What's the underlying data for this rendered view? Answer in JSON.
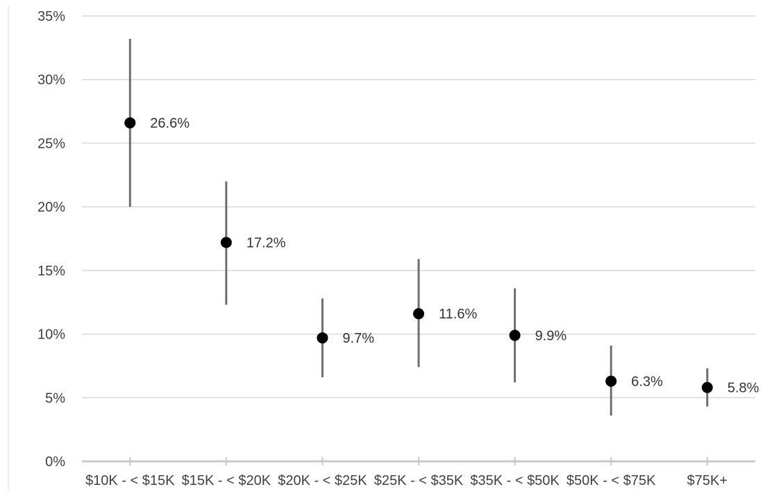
{
  "chart_data": {
    "type": "scatter",
    "title": "",
    "xlabel": "",
    "ylabel": "",
    "categories": [
      "$10K - < $15K",
      "$15K - < $20K",
      "$20K - < $25K",
      "$25K - < $35K",
      "$35K - < $50K",
      "$50K - < $75K",
      "$75K+"
    ],
    "values": [
      26.6,
      17.2,
      9.7,
      11.6,
      9.9,
      6.3,
      5.8
    ],
    "data_labels": [
      "26.6%",
      "17.2%",
      "9.7%",
      "11.6%",
      "9.9%",
      "6.3%",
      "5.8%"
    ],
    "error_low": [
      20.0,
      12.3,
      6.6,
      7.4,
      6.2,
      3.6,
      4.3
    ],
    "error_high": [
      33.2,
      22.0,
      12.8,
      15.9,
      13.6,
      9.1,
      7.3
    ],
    "ylim": [
      0,
      35
    ],
    "yticks": [
      0,
      5,
      10,
      15,
      20,
      25,
      30,
      35
    ],
    "ytick_labels": [
      "0%",
      "5%",
      "10%",
      "15%",
      "20%",
      "25%",
      "30%",
      "35%"
    ],
    "grid": true,
    "legend": "none",
    "colors": {
      "point": "#000000",
      "error_bar": "#6e6e6e",
      "grid": "#d9d9d9",
      "axis": "#c8c8c8"
    }
  }
}
